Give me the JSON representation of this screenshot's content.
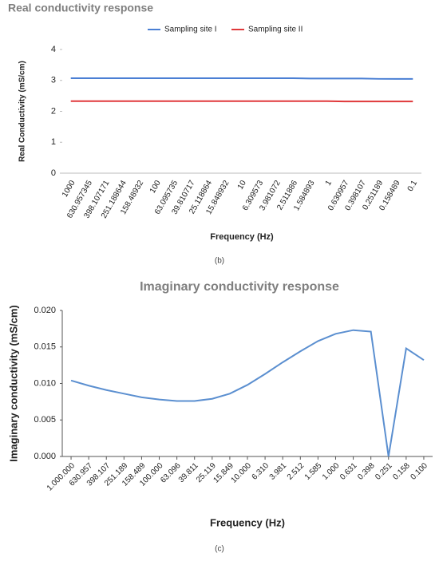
{
  "chart_data": [
    {
      "type": "line",
      "title": "Real conductivity response",
      "x_label": "Frequency (Hz)",
      "y_label": "Real Conductivity (mS/cm)",
      "caption": "(b)",
      "categories": [
        "1000",
        "630.957345",
        "398.107171",
        "251.188644",
        "158.48932",
        "100",
        "63.095735",
        "39.810717",
        "25.118864",
        "15.848932",
        "10",
        "6.309573",
        "3.981072",
        "2.511886",
        "1.584893",
        "1",
        "0.630957",
        "0.398107",
        "0.251189",
        "0.158489",
        "0.1"
      ],
      "series": [
        {
          "name": "Sampling site I",
          "color": "#4a7fd4",
          "values": [
            3.07,
            3.07,
            3.07,
            3.07,
            3.07,
            3.07,
            3.07,
            3.07,
            3.07,
            3.07,
            3.07,
            3.07,
            3.07,
            3.07,
            3.06,
            3.06,
            3.06,
            3.06,
            3.05,
            3.05,
            3.05
          ]
        },
        {
          "name": "Sampling site II",
          "color": "#e0393b",
          "values": [
            2.33,
            2.33,
            2.33,
            2.33,
            2.33,
            2.33,
            2.33,
            2.33,
            2.33,
            2.33,
            2.33,
            2.33,
            2.33,
            2.33,
            2.33,
            2.33,
            2.32,
            2.32,
            2.32,
            2.32,
            2.32
          ]
        }
      ],
      "ylim": [
        0,
        4
      ],
      "yticks": [
        0,
        1,
        2,
        3,
        4
      ],
      "legend": "top",
      "grid": false
    },
    {
      "type": "line",
      "title": "Imaginary conductivity response",
      "x_label": "Frequency (Hz)",
      "y_label": "Imaginary conductivity (mS/cm)",
      "caption": "(c)",
      "categories": [
        "1.000.000",
        "630.957",
        "398.107",
        "251.189",
        "158.489",
        "100.000",
        "63.096",
        "39.811",
        "25.119",
        "15.849",
        "10.000",
        "6.310",
        "3.981",
        "2.512",
        "1.585",
        "1.000",
        "0.631",
        "0.398",
        "0.251",
        "0.158",
        "0.100"
      ],
      "values": [
        0.0104,
        0.0097,
        0.0091,
        0.0086,
        0.0081,
        0.0078,
        0.0076,
        0.0076,
        0.0079,
        0.0086,
        0.0098,
        0.0113,
        0.0129,
        0.0144,
        0.0158,
        0.0168,
        0.0173,
        0.0171,
        0.0,
        0.0148,
        0.0132
      ],
      "color": "#5b8fd0",
      "ylim": [
        0,
        0.02
      ],
      "yticks": [
        {
          "value": 0,
          "label": "0.000"
        },
        {
          "value": 0.005,
          "label": "0.005"
        },
        {
          "value": 0.01,
          "label": "0.010"
        },
        {
          "value": 0.015,
          "label": "0.015"
        },
        {
          "value": 0.02,
          "label": "0.020"
        }
      ],
      "grid": false
    }
  ]
}
